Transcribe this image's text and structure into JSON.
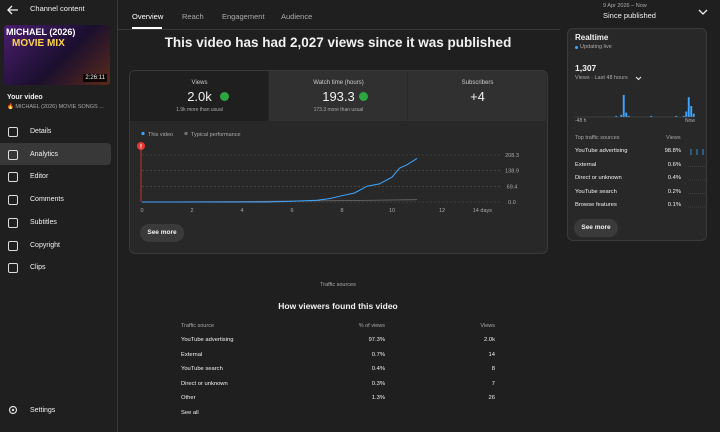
{
  "sidebar": {
    "header": "Channel content",
    "thumbnail": {
      "line1": "MICHAEL (2026)",
      "line2": "MOVIE MIX",
      "duration": "2:26:11"
    },
    "your_video": "Your video",
    "video_title": "🔥 MICHAEL (2026) MOVIE SONGS ...",
    "nav": [
      "Details",
      "Analytics",
      "Editor",
      "Comments",
      "Subtitles",
      "Copyright",
      "Clips"
    ],
    "selected": "Analytics",
    "settings": "Settings"
  },
  "tabs": [
    "Overview",
    "Reach",
    "Engagement",
    "Audience"
  ],
  "date_range": {
    "range": "9 Apr 2026 – Now",
    "label": "Since published"
  },
  "headline": "This video has had 2,027 views since it was published",
  "metrics": [
    {
      "label": "Views",
      "value": "2.0k",
      "note": "1.9k more than usual"
    },
    {
      "label": "Watch time (hours)",
      "value": "193.3",
      "note": "173.3 more than usual"
    },
    {
      "label": "Subscribers",
      "value": "+4"
    }
  ],
  "chart": {
    "type": "line",
    "xlim": [
      0,
      14
    ],
    "ylim": [
      0,
      208.3
    ],
    "xticks": [
      0,
      2,
      4,
      6,
      8,
      10,
      12,
      {
        "value": 14,
        "label": "14 days"
      }
    ],
    "yticks": [
      208.3,
      138.9,
      69.4,
      {
        "value": 0,
        "label": "0.0"
      }
    ],
    "series": [
      {
        "name": "This video",
        "color": "#3ea6ff",
        "x": [
          0,
          5,
          6,
          7,
          7.5,
          8,
          8.5,
          9,
          9.5,
          10,
          10.3,
          10.6,
          11
        ],
        "values": [
          0,
          0,
          3,
          8,
          15,
          28,
          40,
          70,
          80,
          110,
          150,
          165,
          193.3
        ]
      },
      {
        "name": "Typical performance",
        "color": "#6f6f6f",
        "x": [
          0,
          4,
          8,
          11
        ],
        "values": [
          0,
          2,
          6,
          10
        ]
      }
    ],
    "button": "See more"
  },
  "realtime": {
    "title": "Realtime",
    "status": "Updating live",
    "views": "1,307",
    "period": "Views · Last 48 hours",
    "bars": [
      0,
      0,
      0,
      0,
      0,
      0,
      0,
      0,
      0,
      0,
      0,
      0,
      0,
      0,
      0,
      0,
      1,
      0,
      2,
      20,
      4,
      1,
      0,
      0,
      0,
      0,
      0,
      0,
      0,
      0,
      1,
      0,
      0,
      0,
      0,
      0,
      0,
      0,
      0,
      0,
      1,
      0,
      0,
      1,
      5,
      18,
      10,
      3
    ],
    "start_label": "-48 h",
    "end_label": "Now",
    "sources_title": "Top traffic sources",
    "views_header": "Views",
    "sources": [
      {
        "name": "YouTube advertising",
        "share": "98.8%"
      },
      {
        "name": "External",
        "share": "0.6%"
      },
      {
        "name": "Direct or unknown",
        "share": "0.4%"
      },
      {
        "name": "YouTube search",
        "share": "0.2%"
      },
      {
        "name": "Browse features",
        "share": "0.1%"
      }
    ],
    "button": "See more"
  },
  "traffic": {
    "section": "Traffic sources",
    "title": "How viewers found this video",
    "headers": [
      "Traffic source",
      "% of views",
      "Views"
    ],
    "rows": [
      [
        "YouTube advertising",
        "97.3%",
        "2.0k"
      ],
      [
        "External",
        "0.7%",
        "14"
      ],
      [
        "YouTube search",
        "0.4%",
        "8"
      ],
      [
        "Direct or unknown",
        "0.3%",
        "7"
      ],
      [
        "Other",
        "1.3%",
        "26"
      ]
    ],
    "link": "See all"
  }
}
